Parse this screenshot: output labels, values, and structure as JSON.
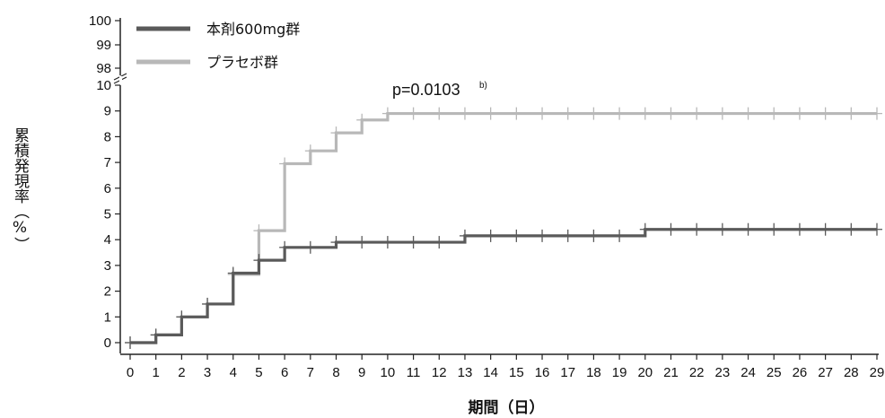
{
  "chart_data": {
    "type": "line",
    "step": true,
    "xlabel": "期間（日）",
    "ylabel": "累積発現率（%）",
    "x_ticks": [
      0,
      1,
      2,
      3,
      4,
      5,
      6,
      7,
      8,
      9,
      10,
      11,
      12,
      13,
      14,
      15,
      16,
      17,
      18,
      19,
      20,
      21,
      22,
      23,
      24,
      25,
      26,
      27,
      28,
      29
    ],
    "y_ticks": [
      0,
      1,
      2,
      3,
      4,
      5,
      6,
      7,
      8,
      9,
      10
    ],
    "y_break_ticks": [
      98,
      99,
      100
    ],
    "xlim": [
      0,
      29
    ],
    "ylim": [
      0,
      10
    ],
    "legend_position": "top-left",
    "annotation": {
      "main": "p=0.0103",
      "superscript": "b)"
    },
    "series": [
      {
        "name": "本剤600mg群",
        "color": "#5a5a5a",
        "steps": [
          [
            0,
            0
          ],
          [
            1,
            0.3
          ],
          [
            2,
            1.0
          ],
          [
            3,
            1.5
          ],
          [
            4,
            2.7
          ],
          [
            5,
            3.2
          ],
          [
            6,
            3.7
          ],
          [
            8,
            3.9
          ],
          [
            13,
            4.15
          ],
          [
            20,
            4.4
          ],
          [
            29,
            4.4
          ]
        ],
        "censor_x": [
          0,
          1,
          2,
          3,
          4,
          5,
          6,
          7,
          8,
          9,
          10,
          11,
          12,
          13,
          14,
          15,
          16,
          17,
          18,
          19,
          20,
          21,
          22,
          23,
          24,
          25,
          26,
          27,
          28,
          29
        ]
      },
      {
        "name": "プラセボ群",
        "color": "#b8b8b8",
        "steps": [
          [
            0,
            0
          ],
          [
            1,
            0.3
          ],
          [
            2,
            1.0
          ],
          [
            3,
            1.5
          ],
          [
            4,
            2.65
          ],
          [
            5,
            4.35
          ],
          [
            6,
            6.95
          ],
          [
            7,
            7.45
          ],
          [
            8,
            8.15
          ],
          [
            9,
            8.65
          ],
          [
            10,
            8.9
          ],
          [
            29,
            8.9
          ]
        ],
        "censor_x": [
          0,
          1,
          2,
          3,
          4,
          5,
          6,
          7,
          8,
          9,
          10,
          11,
          12,
          13,
          14,
          15,
          16,
          17,
          18,
          19,
          20,
          21,
          22,
          23,
          24,
          25,
          26,
          27,
          28,
          29
        ]
      }
    ]
  }
}
